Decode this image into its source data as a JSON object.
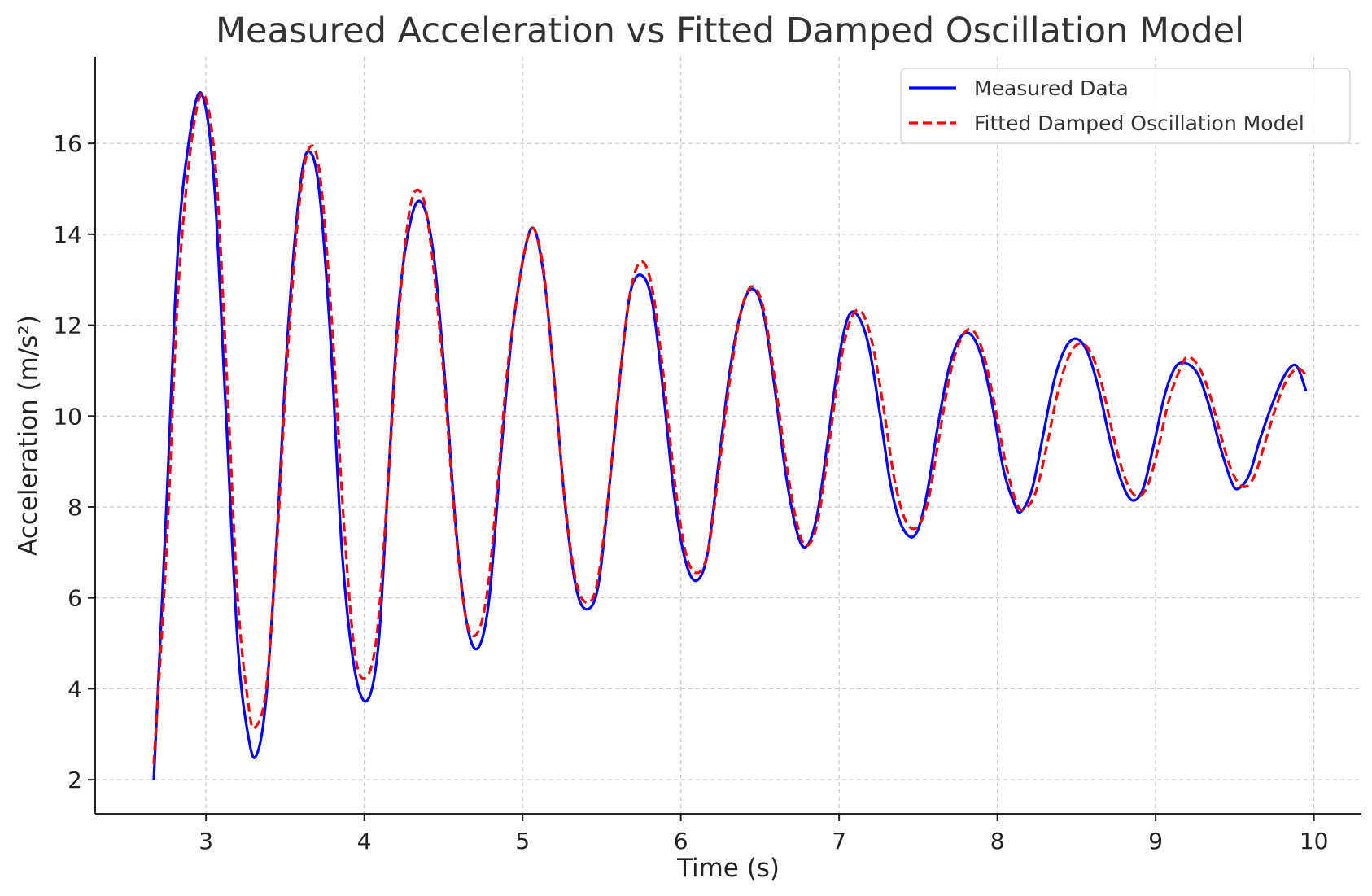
{
  "chart_data": {
    "type": "line",
    "title": "Measured Acceleration vs Fitted Damped Oscillation Model",
    "xlabel": "Time (s)",
    "ylabel": "Acceleration (m/s²)",
    "xlim": [
      2.3,
      10.3
    ],
    "ylim": [
      1.25,
      17.9
    ],
    "xticks": [
      3,
      4,
      5,
      6,
      7,
      8,
      9,
      10
    ],
    "yticks": [
      2,
      4,
      6,
      8,
      10,
      12,
      14,
      16
    ],
    "grid": true,
    "legend_position": "top-right",
    "series": [
      {
        "name": "Measured Data",
        "color": "#0000ff",
        "style": "solid",
        "x": [
          2.67,
          2.75,
          2.82,
          2.89,
          2.97,
          3.05,
          3.12,
          3.2,
          3.27,
          3.32,
          3.38,
          3.45,
          3.52,
          3.6,
          3.66,
          3.72,
          3.79,
          3.86,
          3.94,
          4.02,
          4.09,
          4.15,
          4.22,
          4.3,
          4.37,
          4.44,
          4.51,
          4.58,
          4.65,
          4.72,
          4.79,
          4.86,
          4.94,
          5.05,
          5.13,
          5.2,
          5.27,
          5.34,
          5.41,
          5.48,
          5.55,
          5.62,
          5.68,
          5.75,
          5.82,
          5.89,
          5.96,
          6.03,
          6.1,
          6.17,
          6.24,
          6.31,
          6.38,
          6.45,
          6.52,
          6.59,
          6.66,
          6.73,
          6.79,
          6.86,
          6.93,
          7.0,
          7.06,
          7.12,
          7.19,
          7.26,
          7.33,
          7.4,
          7.48,
          7.55,
          7.62,
          7.69,
          7.76,
          7.83,
          7.9,
          7.97,
          8.04,
          8.11,
          8.15,
          8.22,
          8.29,
          8.36,
          8.43,
          8.5,
          8.57,
          8.64,
          8.71,
          8.78,
          8.85,
          8.92,
          8.99,
          9.06,
          9.13,
          9.2,
          9.27,
          9.34,
          9.41,
          9.48,
          9.52,
          9.59,
          9.66,
          9.73,
          9.8,
          9.86,
          9.9,
          9.95
        ],
        "y": [
          2.0,
          8.0,
          13.5,
          16.0,
          17.1,
          15.2,
          10.5,
          5.0,
          2.9,
          2.55,
          3.8,
          7.5,
          12.0,
          15.2,
          15.8,
          14.8,
          11.5,
          7.0,
          4.4,
          3.75,
          5.0,
          8.5,
          12.5,
          14.4,
          14.65,
          13.5,
          10.8,
          7.5,
          5.4,
          4.9,
          6.0,
          9.0,
          12.0,
          14.1,
          13.2,
          10.8,
          8.0,
          6.2,
          5.75,
          6.3,
          8.5,
          11.0,
          12.7,
          13.1,
          12.5,
          10.5,
          8.2,
          6.8,
          6.38,
          7.0,
          9.0,
          11.0,
          12.3,
          12.8,
          12.3,
          10.7,
          8.8,
          7.5,
          7.12,
          7.8,
          9.5,
          11.3,
          12.2,
          12.2,
          11.5,
          10.0,
          8.4,
          7.55,
          7.38,
          8.2,
          9.7,
          11.0,
          11.7,
          11.8,
          11.3,
          10.2,
          8.8,
          8.05,
          7.9,
          8.4,
          9.6,
          10.8,
          11.5,
          11.7,
          11.4,
          10.6,
          9.5,
          8.6,
          8.15,
          8.4,
          9.4,
          10.5,
          11.1,
          11.15,
          10.9,
          10.2,
          9.3,
          8.55,
          8.4,
          8.7,
          9.5,
          10.2,
          10.8,
          11.1,
          11.05,
          10.55
        ]
      },
      {
        "name": "Fitted Damped Oscillation Model",
        "color": "#ff0000",
        "style": "dashed",
        "x": [
          2.67,
          2.75,
          2.82,
          2.9,
          2.98,
          3.06,
          3.13,
          3.2,
          3.27,
          3.31,
          3.38,
          3.45,
          3.52,
          3.6,
          3.67,
          3.73,
          3.8,
          3.87,
          3.94,
          4.01,
          4.08,
          4.15,
          4.22,
          4.29,
          4.36,
          4.42,
          4.5,
          4.57,
          4.64,
          4.71,
          4.78,
          4.85,
          4.92,
          5.04,
          5.12,
          5.19,
          5.26,
          5.33,
          5.4,
          5.47,
          5.54,
          5.61,
          5.68,
          5.75,
          5.82,
          5.89,
          5.96,
          6.03,
          6.1,
          6.17,
          6.24,
          6.31,
          6.38,
          6.45,
          6.52,
          6.59,
          6.66,
          6.73,
          6.79,
          6.86,
          6.93,
          7.0,
          7.07,
          7.14,
          7.21,
          7.28,
          7.35,
          7.42,
          7.49,
          7.56,
          7.63,
          7.7,
          7.77,
          7.84,
          7.91,
          7.98,
          8.05,
          8.12,
          8.17,
          8.24,
          8.31,
          8.38,
          8.45,
          8.52,
          8.59,
          8.66,
          8.73,
          8.8,
          8.87,
          8.94,
          9.01,
          9.08,
          9.15,
          9.2,
          9.27,
          9.34,
          9.41,
          9.48,
          9.55,
          9.62,
          9.69,
          9.76,
          9.83,
          9.9,
          9.96
        ],
        "y": [
          2.35,
          7.0,
          12.5,
          15.8,
          17.1,
          15.5,
          11.0,
          6.0,
          3.6,
          3.15,
          4.0,
          7.3,
          11.6,
          15.0,
          15.95,
          15.0,
          11.8,
          7.7,
          4.8,
          4.25,
          5.2,
          8.5,
          12.3,
          14.6,
          14.9,
          13.8,
          11.0,
          7.8,
          5.6,
          5.2,
          6.2,
          8.8,
          11.5,
          14.0,
          13.5,
          11.2,
          8.4,
          6.5,
          5.9,
          6.3,
          8.2,
          10.7,
          12.7,
          13.4,
          12.8,
          10.9,
          8.6,
          7.0,
          6.55,
          7.0,
          8.8,
          10.8,
          12.3,
          12.85,
          12.4,
          10.9,
          9.1,
          7.7,
          7.15,
          7.6,
          9.2,
          11.0,
          12.1,
          12.3,
          11.6,
          10.2,
          8.6,
          7.7,
          7.55,
          8.1,
          9.5,
          10.9,
          11.7,
          11.9,
          11.4,
          10.3,
          9.0,
          8.1,
          7.95,
          8.3,
          9.3,
          10.5,
          11.3,
          11.6,
          11.4,
          10.7,
          9.6,
          8.7,
          8.25,
          8.4,
          9.2,
          10.3,
          11.0,
          11.3,
          11.1,
          10.5,
          9.6,
          8.8,
          8.45,
          8.65,
          9.4,
          10.2,
          10.8,
          11.05,
          10.85
        ]
      }
    ]
  }
}
